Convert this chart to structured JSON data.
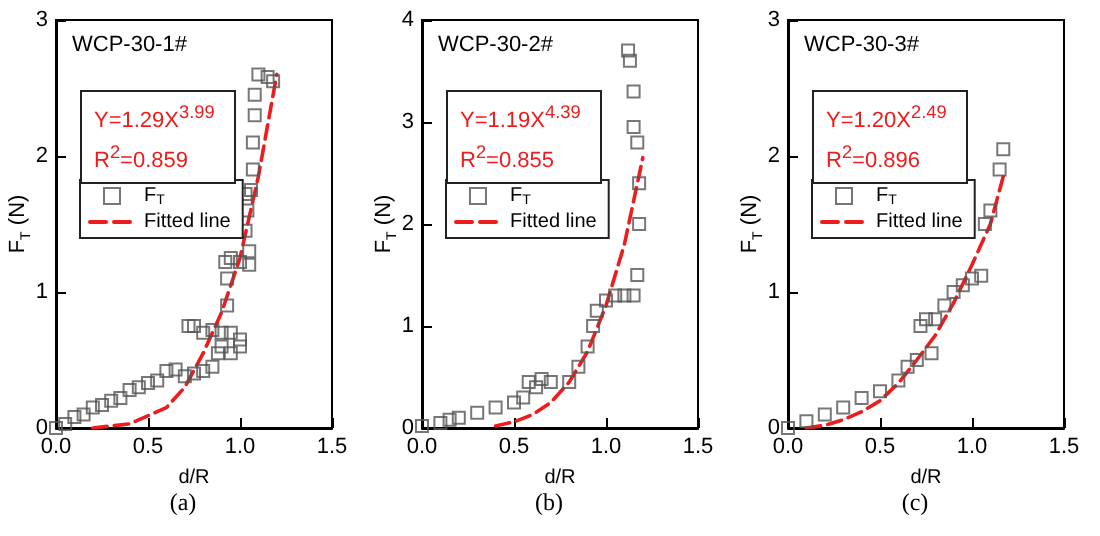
{
  "chart_data": [
    {
      "type": "scatter",
      "title": "WCP-30-1#",
      "xlabel": "d/R",
      "ylabel": "F$_{T}$ (N)",
      "annotations": [
        "Y=1.29X$^{3.99}$",
        "R$^{2}$=0.859",
        "(a)"
      ],
      "xlim": [
        0,
        1.5
      ],
      "xticks": [
        {
          "value": 0,
          "label": "0.0"
        },
        {
          "value": 0.5,
          "label": "0.5"
        },
        {
          "value": 1,
          "label": "1.0"
        },
        {
          "value": 1.5,
          "label": "1.5"
        }
      ],
      "ylim": [
        0,
        3
      ],
      "yticks": [
        0,
        1,
        2,
        3
      ],
      "grid": false,
      "legend": "center",
      "series": [
        {
          "name": "F$_{T}$",
          "marker": "square",
          "color": "#555555",
          "x": [
            0,
            0.05,
            0.1,
            0.15,
            0.2,
            0.25,
            0.3,
            0.35,
            0.4,
            0.45,
            0.5,
            0.55,
            0.6,
            0.65,
            0.7,
            0.75,
            0.8,
            0.85,
            0.88,
            0.9,
            0.95,
            1.0,
            1.0,
            0.95,
            0.85,
            0.75,
            0.72,
            0.8,
            0.9,
            0.93,
            0.93,
            0.92,
            0.95,
            1.0,
            1.05,
            1.05,
            1.03,
            1.04,
            1.03,
            1.06,
            1.07,
            1.07,
            1.08,
            1.08,
            1.1,
            1.15,
            1.18
          ],
          "values": [
            0,
            0.03,
            0.08,
            0.1,
            0.15,
            0.17,
            0.2,
            0.22,
            0.28,
            0.3,
            0.33,
            0.35,
            0.42,
            0.43,
            0.38,
            0.4,
            0.42,
            0.45,
            0.55,
            0.6,
            0.55,
            0.6,
            0.65,
            0.7,
            0.72,
            0.75,
            0.75,
            0.7,
            0.7,
            0.9,
            1.1,
            1.22,
            1.25,
            1.22,
            1.2,
            1.3,
            1.45,
            1.6,
            1.72,
            1.75,
            1.9,
            2.1,
            2.3,
            2.45,
            2.6,
            2.58,
            2.55
          ]
        },
        {
          "name": "Fitted line",
          "type": "line",
          "marker": "none",
          "line_style": "dashed",
          "color": "#ee1c1c",
          "x": [
            0.2,
            0.4,
            0.6,
            0.7,
            0.8,
            0.9,
            1.0,
            1.1,
            1.2
          ],
          "values": [
            0,
            0.03,
            0.15,
            0.3,
            0.55,
            0.85,
            1.25,
            1.85,
            2.6
          ]
        }
      ]
    },
    {
      "type": "scatter",
      "title": "WCP-30-2#",
      "xlabel": "d/R",
      "ylabel": "F$_{T}$ (N)",
      "annotations": [
        "Y=1.19X$^{4.39}$",
        "R$^{2}$=0.855",
        "(b)"
      ],
      "xlim": [
        0,
        1.5
      ],
      "xticks": [
        {
          "value": 0,
          "label": "0.0"
        },
        {
          "value": 0.5,
          "label": "0.5"
        },
        {
          "value": 1,
          "label": "1.0"
        },
        {
          "value": 1.5,
          "label": "1.5"
        }
      ],
      "ylim": [
        0,
        4
      ],
      "yticks": [
        0,
        1,
        2,
        3,
        4
      ],
      "grid": false,
      "legend": "center",
      "series": [
        {
          "name": "F$_{T}$",
          "marker": "square",
          "color": "#555555",
          "x": [
            0,
            0.1,
            0.15,
            0.2,
            0.3,
            0.4,
            0.5,
            0.55,
            0.58,
            0.62,
            0.65,
            0.7,
            0.8,
            0.85,
            0.9,
            0.93,
            0.95,
            1.0,
            1.05,
            1.1,
            1.15,
            1.17,
            1.18,
            1.18,
            1.17,
            1.15,
            1.15,
            1.13,
            1.12
          ],
          "values": [
            0.02,
            0.05,
            0.08,
            0.1,
            0.15,
            0.2,
            0.25,
            0.3,
            0.45,
            0.4,
            0.48,
            0.45,
            0.45,
            0.6,
            0.8,
            1.0,
            1.15,
            1.25,
            1.3,
            1.3,
            1.3,
            1.5,
            2.0,
            2.4,
            2.8,
            2.95,
            3.3,
            3.6,
            3.7
          ]
        },
        {
          "name": "Fitted line",
          "type": "line",
          "marker": "none",
          "line_style": "dashed",
          "color": "#ee1c1c",
          "x": [
            0.4,
            0.5,
            0.6,
            0.7,
            0.8,
            0.9,
            1.0,
            1.1,
            1.2
          ],
          "values": [
            0.02,
            0.06,
            0.13,
            0.25,
            0.45,
            0.75,
            1.2,
            1.8,
            2.65
          ]
        }
      ]
    },
    {
      "type": "scatter",
      "title": "WCP-30-3#",
      "xlabel": "d/R",
      "ylabel": "F$_{T}$ (N)",
      "annotations": [
        "Y=1.20X$^{2.49}$",
        "R$^{2}$=0.896",
        "(c)"
      ],
      "xlim": [
        0,
        1.5
      ],
      "xticks": [
        {
          "value": 0,
          "label": "0.0"
        },
        {
          "value": 0.5,
          "label": "0.5"
        },
        {
          "value": 1,
          "label": "1.0"
        },
        {
          "value": 1.5,
          "label": "1.5"
        }
      ],
      "ylim": [
        0,
        3
      ],
      "yticks": [
        0,
        1,
        2,
        3
      ],
      "grid": false,
      "legend": "center",
      "series": [
        {
          "name": "F$_{T}$",
          "marker": "square",
          "color": "#555555",
          "x": [
            0,
            0.1,
            0.2,
            0.3,
            0.4,
            0.5,
            0.6,
            0.65,
            0.7,
            0.72,
            0.75,
            0.78,
            0.8,
            0.85,
            0.9,
            0.95,
            1.0,
            1.05,
            1.07,
            1.1,
            1.15,
            1.17
          ],
          "values": [
            0,
            0.05,
            0.1,
            0.15,
            0.22,
            0.27,
            0.35,
            0.45,
            0.5,
            0.75,
            0.8,
            0.55,
            0.8,
            0.9,
            1.0,
            1.05,
            1.1,
            1.12,
            1.5,
            1.6,
            1.9,
            2.05
          ]
        },
        {
          "name": "Fitted line",
          "type": "line",
          "marker": "none",
          "line_style": "dashed",
          "color": "#ee1c1c",
          "x": [
            0.1,
            0.2,
            0.3,
            0.4,
            0.5,
            0.6,
            0.7,
            0.8,
            0.9,
            1.0,
            1.1,
            1.17
          ],
          "values": [
            0,
            0.02,
            0.06,
            0.12,
            0.2,
            0.33,
            0.5,
            0.68,
            0.92,
            1.2,
            1.5,
            1.85
          ]
        }
      ]
    }
  ]
}
